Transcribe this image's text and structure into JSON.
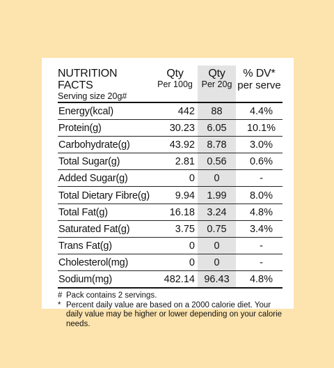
{
  "header": {
    "title": "NUTRITION FACTS",
    "serving": "Serving size 20g#",
    "col_qty100": "Qty",
    "col_qty100_sub": "Per 100g",
    "col_qty20": "Qty",
    "col_qty20_sub": "Per 20g",
    "col_dv": "% DV*",
    "col_dv_sub": "per serve"
  },
  "rows": [
    {
      "name": "Energy(kcal)",
      "per100": "442",
      "per20": "88",
      "dv": "4.4%"
    },
    {
      "name": "Protein(g)",
      "per100": "30.23",
      "per20": "6.05",
      "dv": "10.1%"
    },
    {
      "name": "Carbohydrate(g)",
      "per100": "43.92",
      "per20": "8.78",
      "dv": "3.0%"
    },
    {
      "name": "Total Sugar(g)",
      "per100": "2.81",
      "per20": "0.56",
      "dv": "0.6%"
    },
    {
      "name": "Added Sugar(g)",
      "per100": "0",
      "per20": "0",
      "dv": "-"
    },
    {
      "name": "Total Dietary Fibre(g)",
      "per100": "9.94",
      "per20": "1.99",
      "dv": "8.0%"
    },
    {
      "name": "Total Fat(g)",
      "per100": "16.18",
      "per20": "3.24",
      "dv": "4.8%"
    },
    {
      "name": "Saturated Fat(g)",
      "per100": "3.75",
      "per20": "0.75",
      "dv": "3.4%"
    },
    {
      "name": "Trans Fat(g)",
      "per100": "0",
      "per20": "0",
      "dv": "-"
    },
    {
      "name": "Cholesterol(mg)",
      "per100": "0",
      "per20": "0",
      "dv": "-"
    },
    {
      "name": "Sodium(mg)",
      "per100": "482.14",
      "per20": "96.43",
      "dv": "4.8%"
    }
  ],
  "notes": {
    "pack_mark": "#",
    "pack": "Pack contains 2 servings.",
    "dv_mark": "*",
    "dv": "Percent daily value are based on a 2000 calorie diet. Your daily value may be higher or lower depending on your calorie needs."
  },
  "colors": {
    "background": "#fde3ad",
    "panel": "#ffffff",
    "shaded_column": "#e3e3e3"
  }
}
